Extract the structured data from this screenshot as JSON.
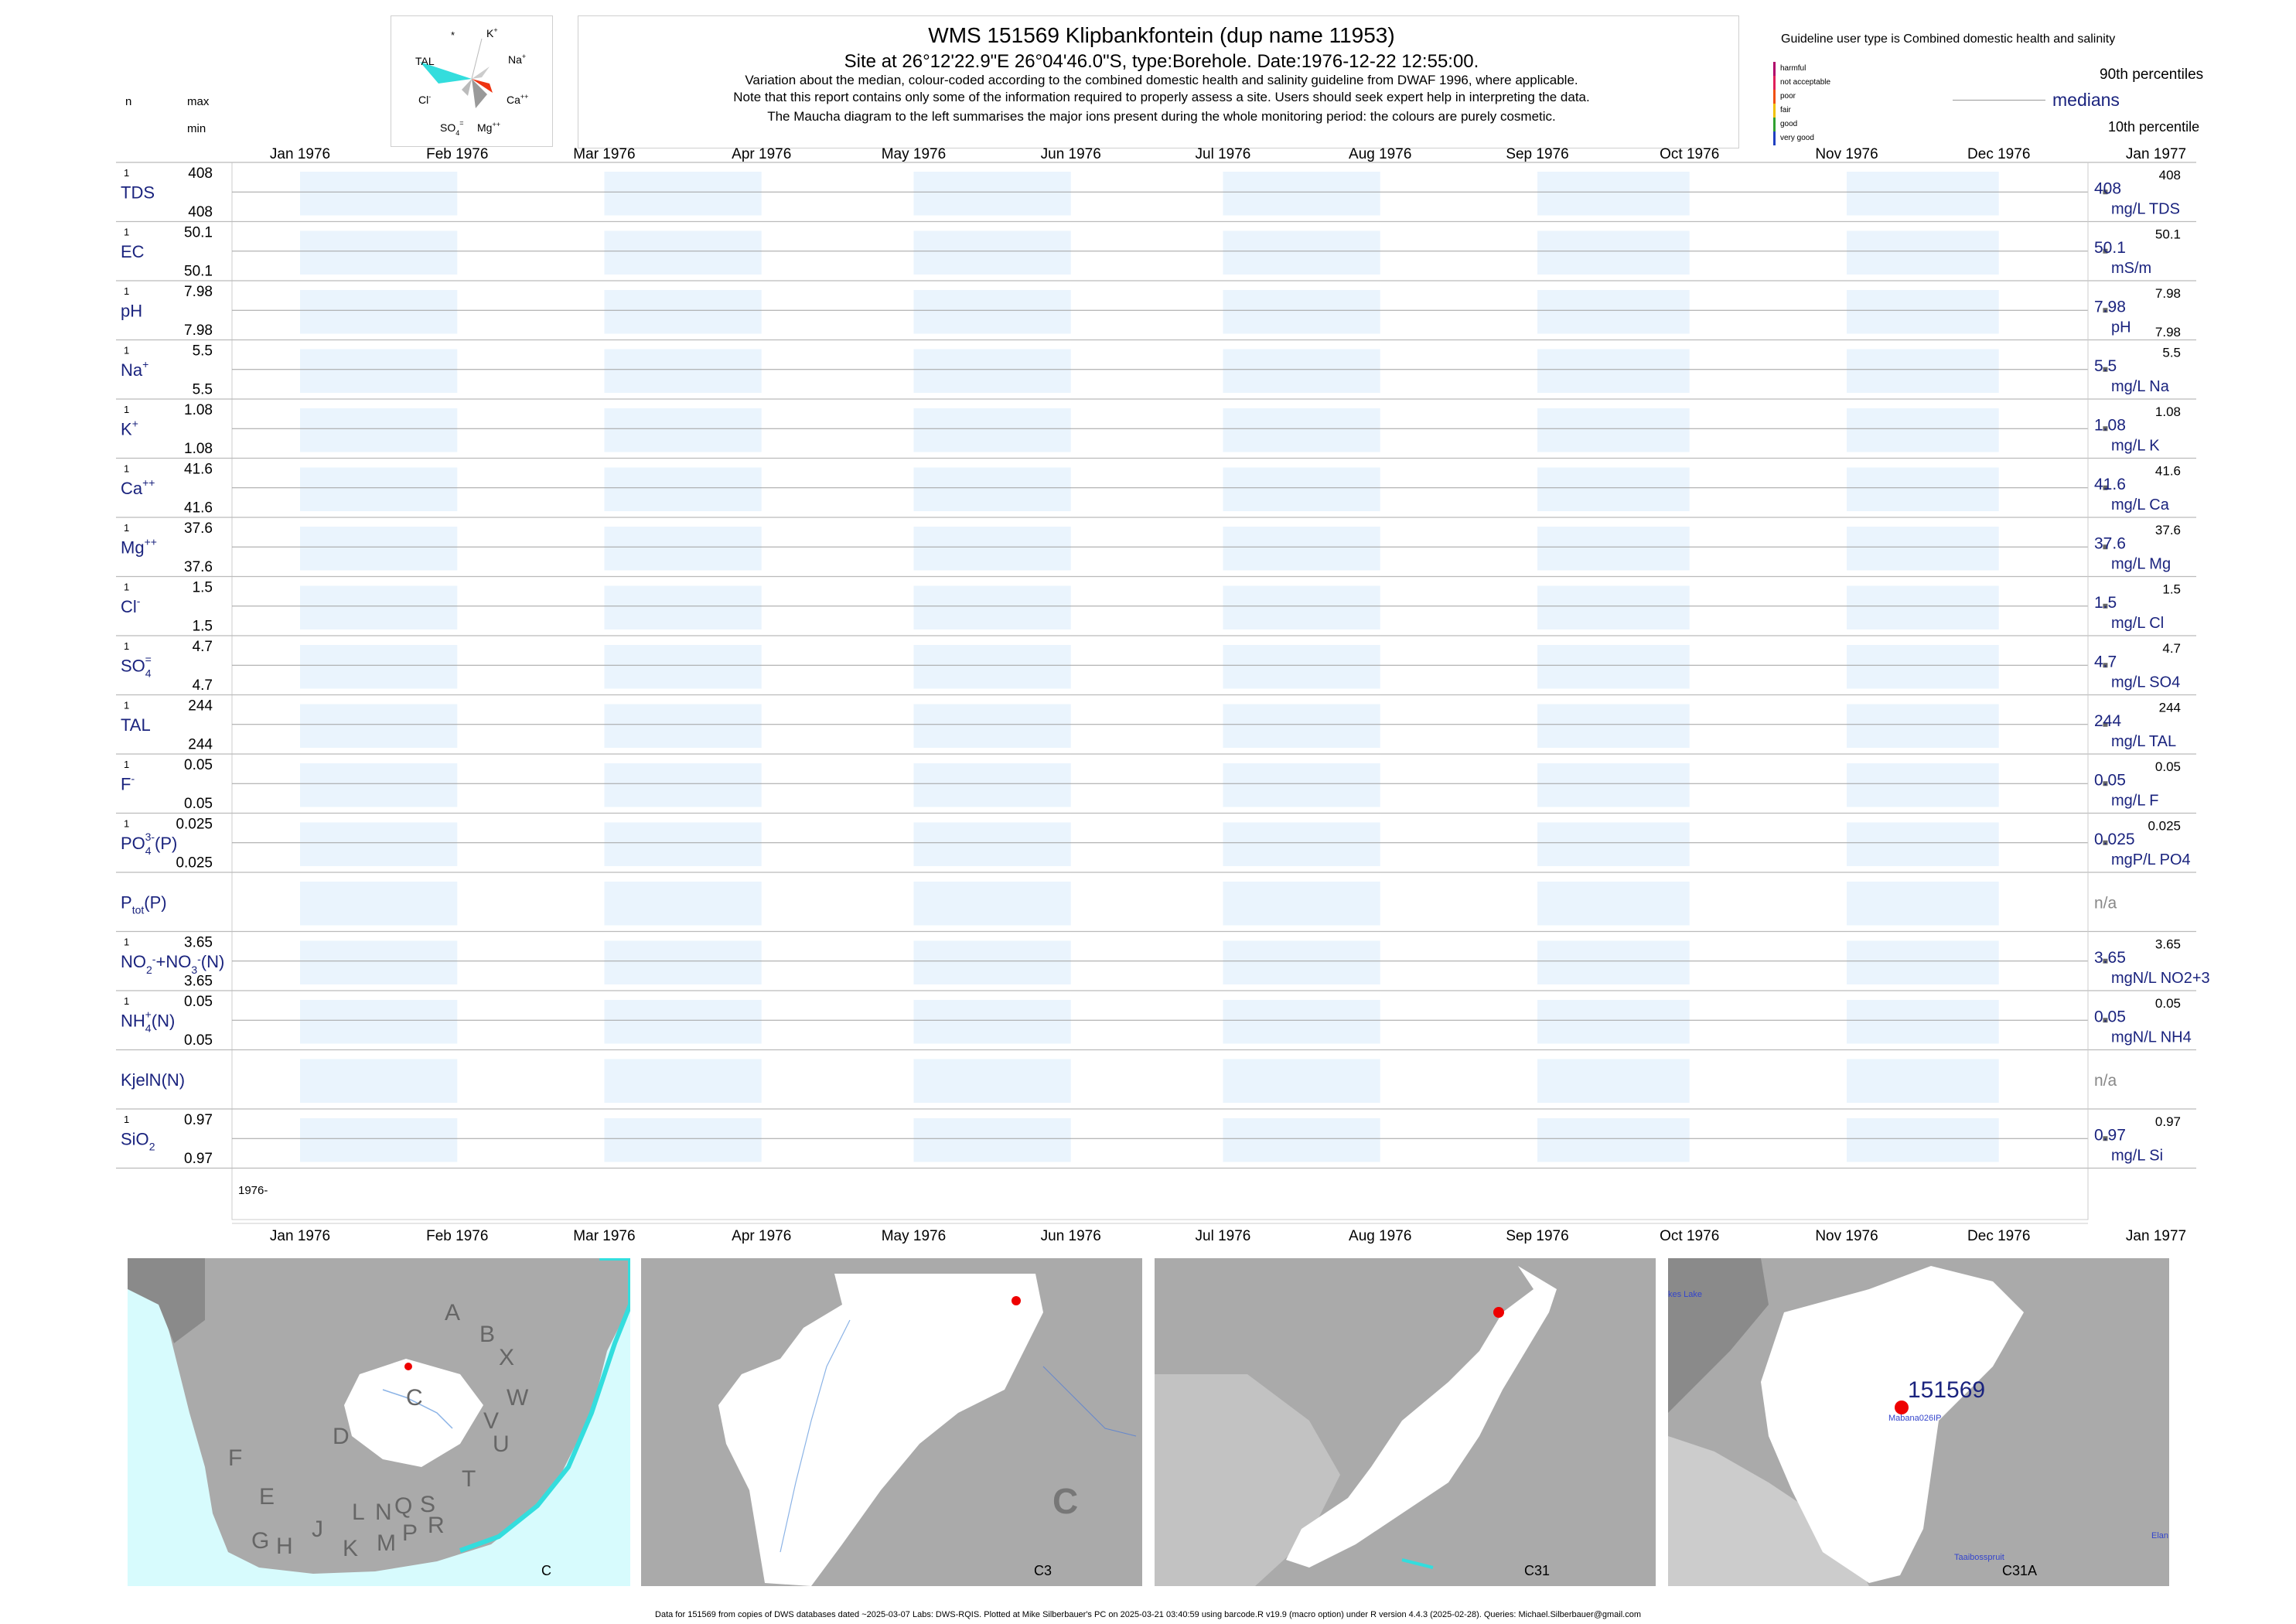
{
  "header": {
    "title": "WMS 151569  Klipbankfontein (dup name 11953)",
    "site": "Site at 26°12'22.9\"E 26°04'46.0\"S, type:Borehole. Date:1976-12-22 12:55:00.",
    "note1": "Variation about the median,  colour-coded according to the combined domestic health and salinity guideline from DWAF 1996, where applicable.",
    "note2": "Note that this report contains only some of the information required to properly assess a site. Users should seek expert help in interpreting the data.",
    "note3": "The Maucha diagram to the left summarises the major ions present during the whole monitoring period: the colours are purely cosmetic."
  },
  "left_header": {
    "n": "n",
    "max": "max",
    "min": "min"
  },
  "maucha": {
    "labels": [
      "*",
      "K+",
      "Na+",
      "Ca++",
      "Mg++",
      "SO4=",
      "Cl-",
      "TAL"
    ],
    "colors": {
      "TAL": "#33dddd",
      "Ca": "#ee3311",
      "Mg": "#999999",
      "SO4": "#bbbbbb",
      "Na": "#bbbbbb"
    }
  },
  "legend": {
    "guideline_title": "Guideline user type is Combined domestic health and salinity",
    "classes": [
      {
        "label": "harmful",
        "color": "#b0006a"
      },
      {
        "label": "not acceptable",
        "color": "#e0205a"
      },
      {
        "label": "poor",
        "color": "#f05010"
      },
      {
        "label": "fair",
        "color": "#f0c000"
      },
      {
        "label": "good",
        "color": "#30a030"
      },
      {
        "label": "very good",
        "color": "#2040c0"
      }
    ],
    "p90": "90th percentiles",
    "medians": "medians",
    "p10": "10th percentile"
  },
  "chart_data": {
    "type": "line",
    "x_ticks": [
      "Jan 1976",
      "Feb 1976",
      "Mar 1976",
      "Apr 1976",
      "May 1976",
      "Jun 1976",
      "Jul 1976",
      "Aug 1976",
      "Sep 1976",
      "Oct 1976",
      "Nov 1976",
      "Dec 1976",
      "Jan 1977"
    ],
    "x_range": [
      "1976-01-01",
      "1977-01-01"
    ],
    "sample_date": "1976-12-22",
    "year_label": "1976-",
    "shaded_months": [
      "Jan 1976",
      "Mar 1976",
      "May 1976",
      "Jul 1976",
      "Sep 1976",
      "Nov 1976",
      "Jan 1977"
    ],
    "series": [
      {
        "name": "TDS",
        "sup": "",
        "sub": "",
        "n": "1",
        "max": "408",
        "min": "408",
        "value": 408,
        "median_label": "408",
        "unit": "mg/L TDS",
        "right_max": "408",
        "right_min": ""
      },
      {
        "name": "EC",
        "sup": "",
        "sub": "",
        "n": "1",
        "max": "50.1",
        "min": "50.1",
        "value": 50.1,
        "median_label": "50.1",
        "unit": "mS/m",
        "right_max": "50.1",
        "right_min": ""
      },
      {
        "name": "pH",
        "sup": "",
        "sub": "",
        "n": "1",
        "max": "7.98",
        "min": "7.98",
        "value": 7.98,
        "median_label": "7.98",
        "unit": "pH",
        "right_max": "7.98",
        "right_min": "7.98"
      },
      {
        "name": "Na",
        "sup": "+",
        "sub": "",
        "n": "1",
        "max": "5.5",
        "min": "5.5",
        "value": 5.5,
        "median_label": "5.5",
        "unit": "mg/L Na",
        "right_max": "5.5",
        "right_min": ""
      },
      {
        "name": "K",
        "sup": "+",
        "sub": "",
        "n": "1",
        "max": "1.08",
        "min": "1.08",
        "value": 1.08,
        "median_label": "1.08",
        "unit": "mg/L K",
        "right_max": "1.08",
        "right_min": ""
      },
      {
        "name": "Ca",
        "sup": "++",
        "sub": "",
        "n": "1",
        "max": "41.6",
        "min": "41.6",
        "value": 41.6,
        "median_label": "41.6",
        "unit": "mg/L Ca",
        "right_max": "41.6",
        "right_min": ""
      },
      {
        "name": "Mg",
        "sup": "++",
        "sub": "",
        "n": "1",
        "max": "37.6",
        "min": "37.6",
        "value": 37.6,
        "median_label": "37.6",
        "unit": "mg/L Mg",
        "right_max": "37.6",
        "right_min": ""
      },
      {
        "name": "Cl",
        "sup": "-",
        "sub": "",
        "n": "1",
        "max": "1.5",
        "min": "1.5",
        "value": 1.5,
        "median_label": "1.5",
        "unit": "mg/L Cl",
        "right_max": "1.5",
        "right_min": ""
      },
      {
        "name": "SO",
        "sup": "=",
        "sub": "4",
        "n": "1",
        "max": "4.7",
        "min": "4.7",
        "value": 4.7,
        "median_label": "4.7",
        "unit": "mg/L SO4",
        "right_max": "4.7",
        "right_min": ""
      },
      {
        "name": "TAL",
        "sup": "",
        "sub": "",
        "n": "1",
        "max": "244",
        "min": "244",
        "value": 244,
        "median_label": "244",
        "unit": "mg/L TAL",
        "right_max": "244",
        "right_min": ""
      },
      {
        "name": "F",
        "sup": "-",
        "sub": "",
        "n": "1",
        "max": "0.05",
        "min": "0.05",
        "value": 0.05,
        "median_label": "0.05",
        "unit": "mg/L F",
        "right_max": "0.05",
        "right_min": ""
      },
      {
        "name": "PO",
        "sup": "3-",
        "sub": "4",
        "suffix": "(P)",
        "n": "1",
        "max": "0.025",
        "min": "0.025",
        "value": 0.025,
        "median_label": "0.025",
        "unit": "mgP/L PO4",
        "right_max": "0.025",
        "right_min": ""
      },
      {
        "name": "P",
        "sup": "",
        "sub": "tot",
        "suffix": "(P)",
        "n": "",
        "max": "",
        "min": "",
        "value": null,
        "median_label": "n/a",
        "unit": "",
        "right_max": "",
        "right_min": ""
      },
      {
        "name": "NO2+NO3(N)",
        "label_html": "NO<sub>2</sub><sup>-</sup>+NO<sub>3</sub><sup>-</sup>(N)",
        "n": "1",
        "max": "3.65",
        "min": "3.65",
        "value": 3.65,
        "median_label": "3.65",
        "unit": "mgN/L NO2+3",
        "right_max": "3.65",
        "right_min": ""
      },
      {
        "name": "NH",
        "sup": "+",
        "sub": "4",
        "suffix": "(N)",
        "n": "1",
        "max": "0.05",
        "min": "0.05",
        "value": 0.05,
        "median_label": "0.05",
        "unit": "mgN/L NH4",
        "right_max": "0.05",
        "right_min": ""
      },
      {
        "name": "KjelN(N)",
        "sup": "",
        "sub": "",
        "n": "",
        "max": "",
        "min": "",
        "value": null,
        "median_label": "n/a",
        "unit": "",
        "right_max": "",
        "right_min": ""
      },
      {
        "name": "SiO",
        "sup": "",
        "sub": "2",
        "n": "1",
        "max": "0.97",
        "min": "0.97",
        "value": 0.97,
        "median_label": "0.97",
        "unit": "mg/L Si",
        "right_max": "0.97",
        "right_min": ""
      }
    ]
  },
  "maps": [
    {
      "caption": "C",
      "regions": [
        "A",
        "B",
        "X",
        "W",
        "C",
        "V",
        "U",
        "D",
        "T",
        "F",
        "E",
        "S",
        "Q",
        "N",
        "L",
        "R",
        "J",
        "P",
        "G",
        "H",
        "K",
        "M"
      ]
    },
    {
      "caption": "C3",
      "regions": [
        "C"
      ]
    },
    {
      "caption": "C31",
      "regions": []
    },
    {
      "caption": "C31A",
      "site_label": "151569",
      "places": [
        "Mabana026IP",
        "Taaibosspruit",
        "kes Lake",
        "Elan"
      ]
    }
  ],
  "footer": "Data for 151569 from copies of DWS databases dated ~2025-03-07 Labs: DWS-RQIS. Plotted at Mike Silberbauer's PC on 2025-03-21 03:40:59 using barcode.R v19.9 (macro option) under R version 4.4.3 (2025-02-28). Queries: Michael.Silberbauer@gmail.com"
}
